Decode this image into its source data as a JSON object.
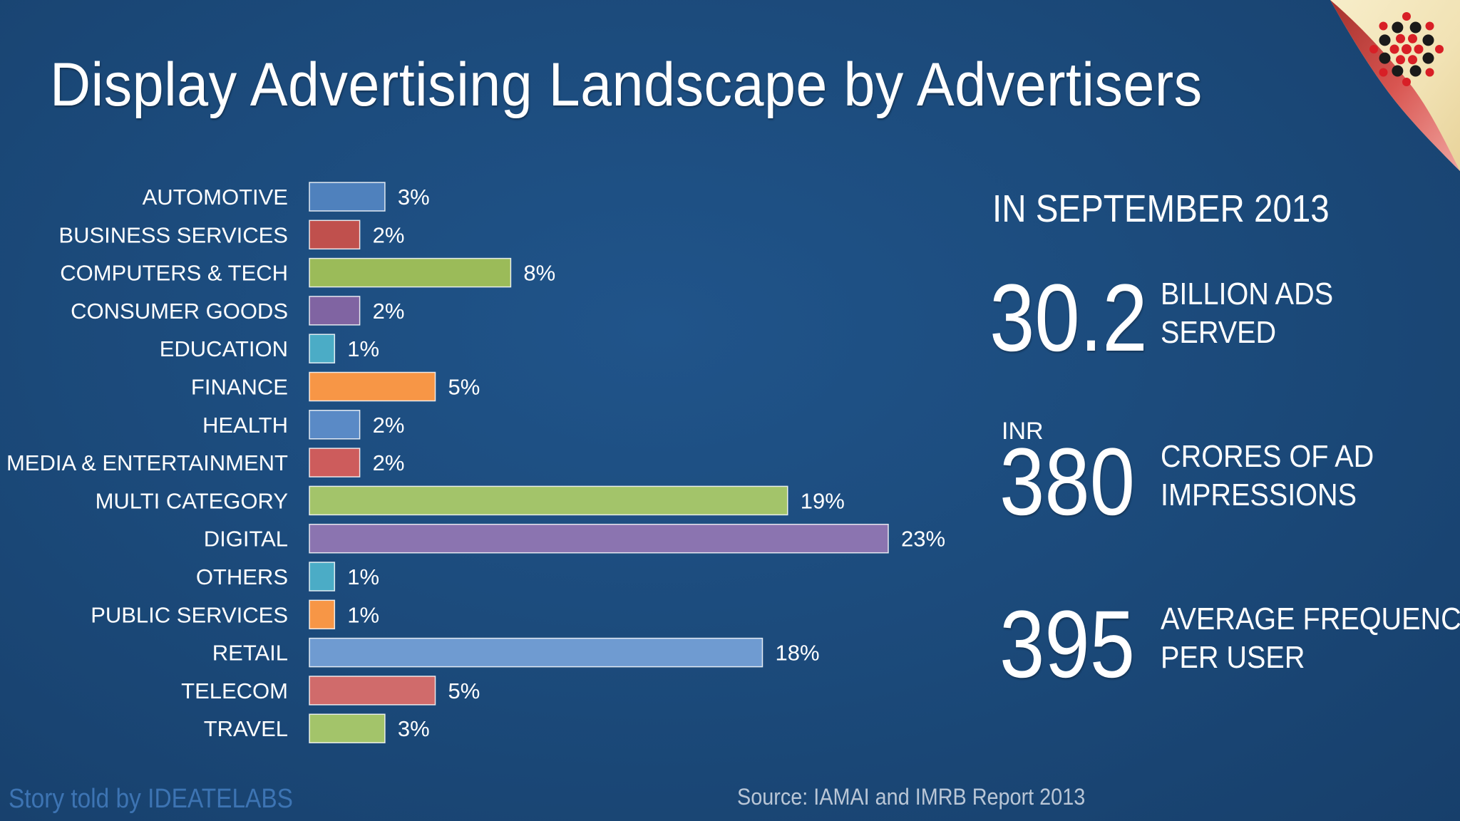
{
  "title": "Display Advertising Landscape by Advertisers",
  "chart_data": {
    "type": "bar",
    "orientation": "horizontal",
    "categories": [
      "AUTOMOTIVE",
      "BUSINESS SERVICES",
      "COMPUTERS & TECH",
      "CONSUMER GOODS",
      "EDUCATION",
      "FINANCE",
      "HEALTH",
      "MEDIA & ENTERTAINMENT",
      "MULTI CATEGORY",
      "DIGITAL",
      "OTHERS",
      "PUBLIC SERVICES",
      "RETAIL",
      "TELECOM",
      "TRAVEL"
    ],
    "values": [
      3,
      2,
      8,
      2,
      1,
      5,
      2,
      2,
      19,
      23,
      1,
      1,
      18,
      5,
      3
    ],
    "value_labels": [
      "3%",
      "2%",
      "8%",
      "2%",
      "1%",
      "5%",
      "2%",
      "2%",
      "19%",
      "23%",
      "1%",
      "1%",
      "18%",
      "5%",
      "3%"
    ],
    "colors": [
      "#4f81bd",
      "#c0504d",
      "#9bbb59",
      "#8064a2",
      "#4bacc6",
      "#f79646",
      "#5a8ac6",
      "#cd5c5c",
      "#a3c46a",
      "#8b74b0",
      "#4bacc6",
      "#f79646",
      "#6f9bd1",
      "#d06b6b",
      "#a3c46a"
    ],
    "unit": "%",
    "xlim": [
      0,
      23
    ],
    "grid": false,
    "legend": "none"
  },
  "stats": {
    "period": "IN SEPTEMBER 2013",
    "items": [
      {
        "prefix": "",
        "value": "30.2",
        "line1": "BILLION ADS",
        "line2": "SERVED"
      },
      {
        "prefix": "INR",
        "value": "380",
        "line1": "CRORES OF AD",
        "line2": "IMPRESSIONS"
      },
      {
        "prefix": "",
        "value": "395",
        "line1": "AVERAGE FREQUENCY",
        "line2": "PER USER"
      }
    ]
  },
  "footer": {
    "credit": "Story told by IDEATELABS",
    "source": "Source: IAMAI and IMRB Report 2013"
  },
  "colors": {
    "background": "#1b4979",
    "text": "#ffffff",
    "corner_curl": "#f4e7bd",
    "logo_red": "#d81f26",
    "logo_black": "#1a1a1a"
  }
}
